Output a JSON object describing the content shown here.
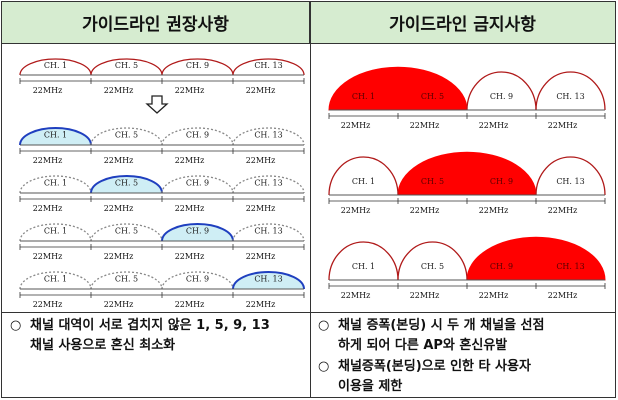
{
  "headers": {
    "left": "가이드라인 권장사항",
    "right": "가이드라인 금지사항"
  },
  "channel_labels": [
    "CH. 1",
    "CH. 5",
    "CH. 9",
    "CH. 13"
  ],
  "width_label": "22MHz",
  "down_arrow_icon": "down-arrow-icon",
  "colors": {
    "highlight_fill": "#cfeef5",
    "highlight_stroke": "#1f3fbf",
    "forbidden_fill": "#ff0000",
    "arc_stroke": "#b01a1a"
  },
  "recommended": {
    "overview_highlight": null,
    "rows": [
      {
        "highlight": "CH. 1"
      },
      {
        "highlight": "CH. 5"
      },
      {
        "highlight": "CH. 9"
      },
      {
        "highlight": "CH. 13"
      }
    ]
  },
  "forbidden": {
    "rows": [
      {
        "bonded": [
          "CH. 1",
          "CH. 5"
        ]
      },
      {
        "bonded": [
          "CH. 5",
          "CH. 9"
        ]
      },
      {
        "bonded": [
          "CH. 9",
          "CH. 13"
        ]
      }
    ]
  },
  "notes": {
    "left": {
      "bullet": "○",
      "line1": "채널 대역이 서로 겹치지 않은 1, 5, 9, 13",
      "line2": "채널 사용으로 혼신 최소화"
    },
    "right_1": {
      "bullet": "○",
      "line1": "채널 증폭(본딩) 시 두 개 채널을 선점",
      "line2": "하게 되어 다른 AP와 혼신유발"
    },
    "right_2": {
      "bullet": "○",
      "line1": "채널증폭(본딩)으로 인한 타 사용자",
      "line2": "이용을 제한"
    }
  }
}
